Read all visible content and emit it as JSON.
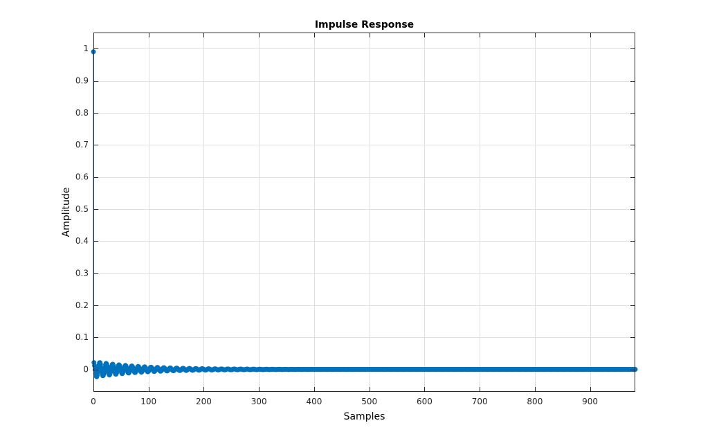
{
  "chart_data": {
    "type": "stem",
    "title": "Impulse Response",
    "xlabel": "Samples",
    "ylabel": "Amplitude",
    "xlim": [
      0,
      982
    ],
    "ylim": [
      -0.07,
      1.05
    ],
    "x_ticks": [
      0,
      100,
      200,
      300,
      400,
      500,
      600,
      700,
      800,
      900
    ],
    "x_tick_labels": [
      "0",
      "100",
      "200",
      "300",
      "400",
      "500",
      "600",
      "700",
      "800",
      "900"
    ],
    "y_ticks": [
      0,
      0.1,
      0.2,
      0.3,
      0.4,
      0.5,
      0.6,
      0.7,
      0.8,
      0.9,
      1
    ],
    "y_tick_labels": [
      "0",
      "0.1",
      "0.2",
      "0.3",
      "0.4",
      "0.5",
      "0.6",
      "0.7",
      "0.8",
      "0.9",
      "1"
    ],
    "grid": true,
    "series": [
      {
        "color": "#0072BD",
        "n_samples": 983,
        "first_value": 0.99,
        "envelope_peak": 0.025,
        "decay_rate": 0.012,
        "oscillation_freq_rad": 2.6
      }
    ]
  },
  "colors": {
    "series": "#0072BD",
    "grid": "#dfdfdf",
    "axes": "#262626"
  }
}
